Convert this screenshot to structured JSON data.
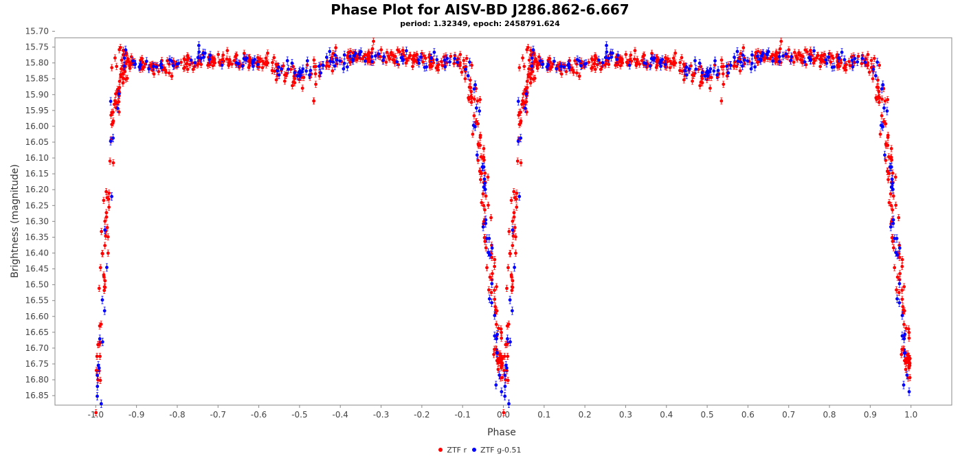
{
  "chart_data": {
    "type": "scatter",
    "title": "Phase Plot for AISV-BD J286.862-6.667",
    "subtitle": "period: 1.32349, epoch: 2458791.624",
    "xlabel": "Phase",
    "ylabel": "Brightness (magnitude)",
    "xlim": [
      -1.1,
      1.1
    ],
    "ylim": [
      15.7,
      16.88
    ],
    "y_inverted": true,
    "grid": false,
    "legend_position": "bottom",
    "x_ticks": [
      "-1.0",
      "-0.9",
      "-0.8",
      "-0.7",
      "-0.6",
      "-0.5",
      "-0.4",
      "-0.3",
      "-0.2",
      "-0.1",
      "0.0",
      "0.1",
      "0.2",
      "0.3",
      "0.4",
      "0.5",
      "0.6",
      "0.7",
      "0.8",
      "0.9",
      "1.0"
    ],
    "y_ticks": [
      "15.70",
      "15.75",
      "15.80",
      "15.85",
      "15.90",
      "15.95",
      "16.00",
      "16.05",
      "16.10",
      "16.15",
      "16.20",
      "16.25",
      "16.30",
      "16.35",
      "16.40",
      "16.45",
      "16.50",
      "16.55",
      "16.60",
      "16.65",
      "16.70",
      "16.75",
      "16.80",
      "16.85"
    ],
    "series": [
      {
        "name": "ZTF r",
        "color": "#ff0000",
        "light_curve_keypoints": {
          "phase": [
            0.0,
            0.005,
            0.01,
            0.02,
            0.03,
            0.04,
            0.05,
            0.06,
            0.07,
            0.08,
            0.1,
            0.15,
            0.25,
            0.35,
            0.42,
            0.47,
            0.5,
            0.53,
            0.58,
            0.65,
            0.75,
            0.85,
            0.9,
            0.91,
            0.93,
            0.94,
            0.95,
            0.96,
            0.97,
            0.98,
            0.99,
            1.0
          ],
          "mag": [
            16.78,
            16.74,
            16.6,
            16.42,
            16.22,
            16.05,
            15.93,
            15.86,
            15.82,
            15.8,
            15.8,
            15.82,
            15.79,
            15.79,
            15.8,
            15.83,
            15.86,
            15.84,
            15.79,
            15.78,
            15.78,
            15.8,
            15.8,
            15.83,
            15.93,
            16.03,
            16.15,
            16.3,
            16.45,
            16.62,
            16.72,
            16.78
          ]
        },
        "outliers": [
          {
            "phase": 0.535,
            "mag": 15.92
          },
          {
            "phase": -0.465,
            "mag": 15.92
          }
        ],
        "error": 0.01,
        "n_points_per_cycle": 520
      },
      {
        "name": "ZTF g-0.51",
        "color": "#0000ff",
        "light_curve_keypoints": {
          "phase": [
            0.0,
            0.005,
            0.01,
            0.02,
            0.03,
            0.04,
            0.05,
            0.06,
            0.07,
            0.08,
            0.1,
            0.15,
            0.25,
            0.35,
            0.42,
            0.47,
            0.5,
            0.53,
            0.58,
            0.65,
            0.75,
            0.85,
            0.9,
            0.91,
            0.93,
            0.94,
            0.95,
            0.96,
            0.97,
            0.98,
            0.99,
            1.0
          ],
          "mag": [
            16.85,
            16.8,
            16.64,
            16.44,
            16.24,
            16.05,
            15.93,
            15.86,
            15.82,
            15.8,
            15.8,
            15.81,
            15.78,
            15.79,
            15.81,
            15.82,
            15.83,
            15.82,
            15.79,
            15.78,
            15.78,
            15.8,
            15.8,
            15.82,
            15.92,
            16.02,
            16.12,
            16.28,
            16.42,
            16.6,
            16.78,
            16.85
          ]
        },
        "outliers": [],
        "error": 0.012,
        "n_points_per_cycle": 170
      }
    ]
  }
}
